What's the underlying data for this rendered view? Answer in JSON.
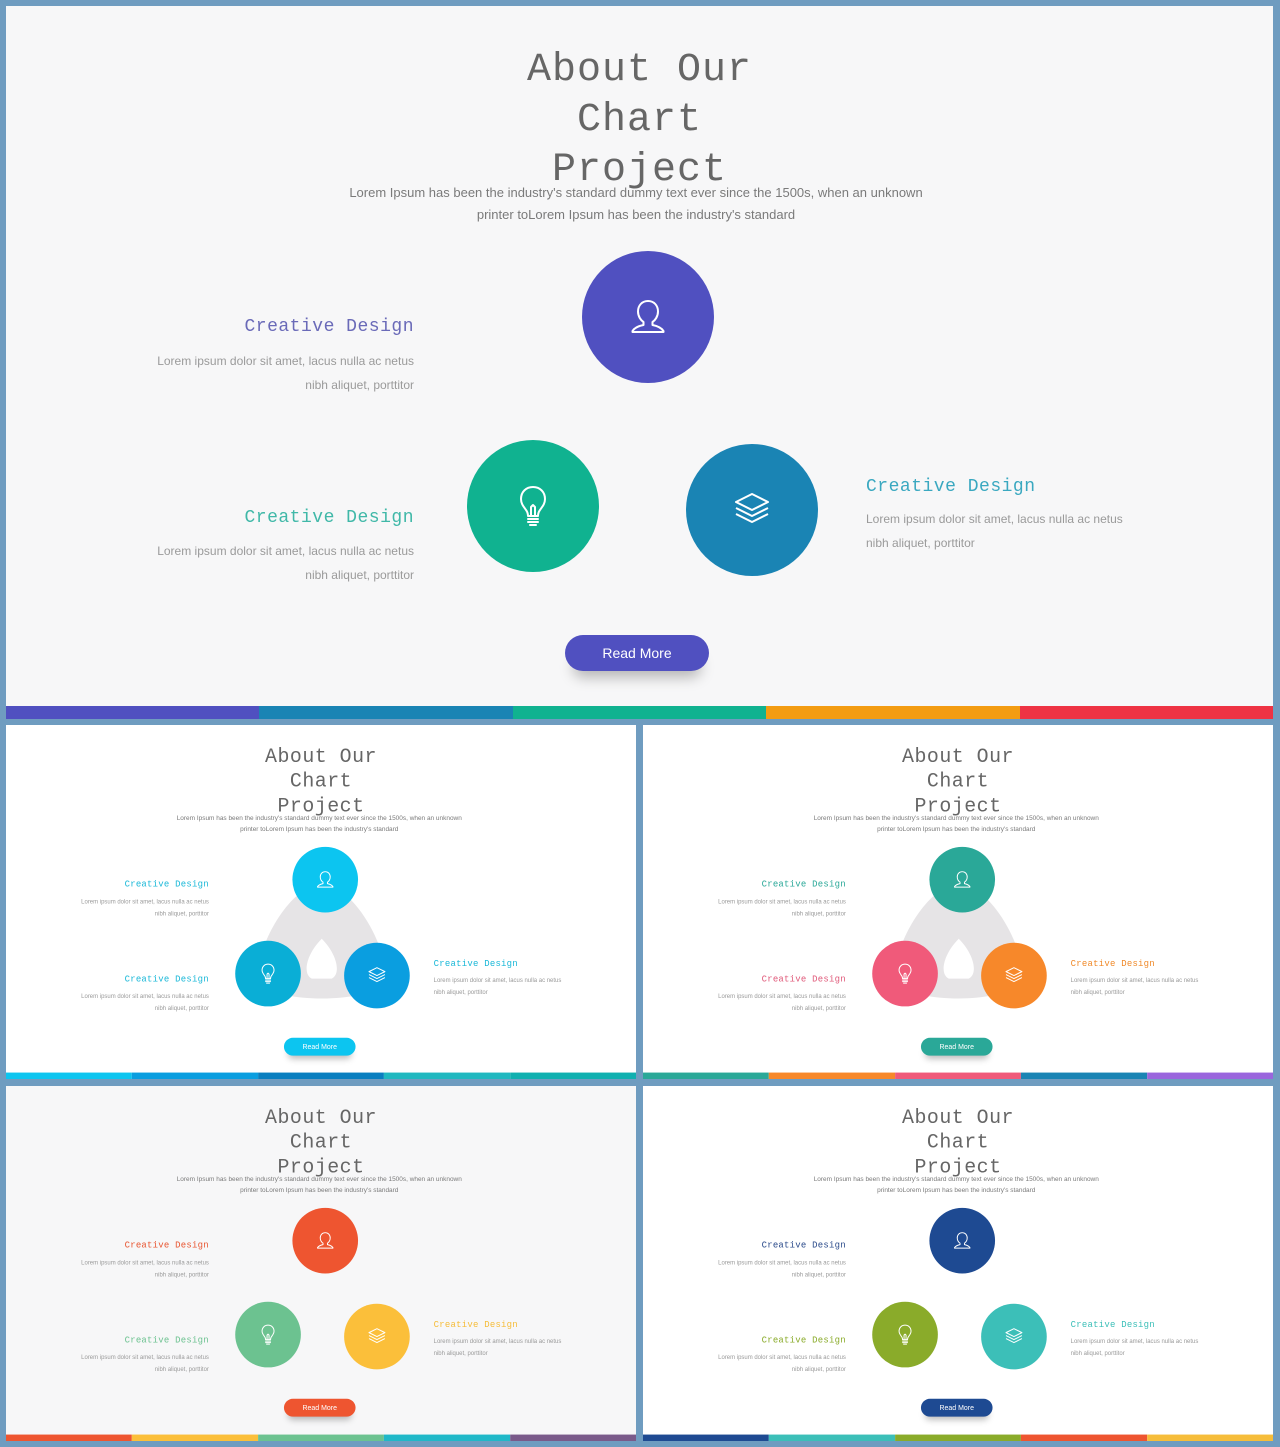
{
  "common": {
    "title": "About Our\nChart\nProject",
    "subtitle": "Lorem Ipsum has been the industry's standard dummy text ever since the 1500s, when an unknown printer toLorem Ipsum has been the industry's standard",
    "item_heading": "Creative Design",
    "item_body": "Lorem ipsum dolor sit amet, lacus nulla ac netus nibh aliquet, porttitor",
    "button": "Read More"
  },
  "icons": [
    "user-icon",
    "lightbulb-icon",
    "layers-icon"
  ],
  "slides": [
    {
      "bg": "#f7f7f8",
      "colors": [
        "#5050c0",
        "#10b290",
        "#1a84b4"
      ],
      "headings": [
        "#6a6ab8",
        "#40b8a8",
        "#3aa8c0"
      ],
      "button": "#5050c0",
      "stripe": [
        "#5050c0",
        "#1a84b4",
        "#10b290",
        "#f39c12",
        "#ee3344"
      ],
      "connector": false
    },
    {
      "bg": "#ffffff",
      "colors": [
        "#0cc5f0",
        "#0aaed6",
        "#0a9ee0"
      ],
      "headings": [
        "#1ab8d8",
        "#1ab8d8",
        "#1ab8d8"
      ],
      "button": "#0cc5f0",
      "stripe": [
        "#0cc5f0",
        "#0a9ee0",
        "#0a7fc0",
        "#20b8c0",
        "#10b0b0"
      ],
      "connector": true
    },
    {
      "bg": "#ffffff",
      "colors": [
        "#2aa898",
        "#f05a7a",
        "#f7882a"
      ],
      "headings": [
        "#2aa898",
        "#e05a7a",
        "#f08a2a"
      ],
      "button": "#2aa898",
      "stripe": [
        "#2aa898",
        "#f7882a",
        "#f05a7a",
        "#1a84b4",
        "#9a66dd"
      ],
      "connector": true
    },
    {
      "bg": "#f7f7f8",
      "colors": [
        "#ee5530",
        "#6cc290",
        "#fbbf3a"
      ],
      "headings": [
        "#e85530",
        "#6cc290",
        "#f6bd3a"
      ],
      "button": "#ee5530",
      "stripe": [
        "#ee5530",
        "#fbbf3a",
        "#6cc290",
        "#20b8c8",
        "#7a5a8a"
      ],
      "connector": false
    },
    {
      "bg": "#ffffff",
      "colors": [
        "#1e4a92",
        "#8aab2a",
        "#3cbfb8"
      ],
      "headings": [
        "#2a4a8a",
        "#8aab2a",
        "#3cbfb8"
      ],
      "button": "#1e4a92",
      "stripe": [
        "#1e4a92",
        "#3cbfb8",
        "#8aab2a",
        "#ee5530",
        "#f6bd3a"
      ],
      "connector": false
    }
  ]
}
